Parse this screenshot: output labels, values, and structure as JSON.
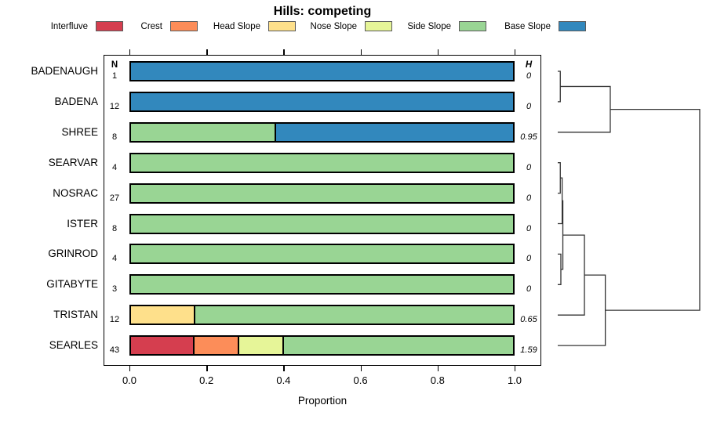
{
  "chart_data": {
    "type": "bar",
    "orientation": "horizontal",
    "stacked": true,
    "title": "Hills: competing",
    "xlabel": "Proportion",
    "xlim": [
      0,
      1
    ],
    "xticks": [
      "0.0",
      "0.2",
      "0.4",
      "0.6",
      "0.8",
      "1.0"
    ],
    "n_column_header": "N",
    "h_column_header": "H",
    "legend": [
      {
        "label": "Interfluve",
        "color": "#D53E4F"
      },
      {
        "label": "Crest",
        "color": "#FC8D59"
      },
      {
        "label": "Head Slope",
        "color": "#FEE08B"
      },
      {
        "label": "Nose Slope",
        "color": "#E6F598"
      },
      {
        "label": "Side Slope",
        "color": "#99D594"
      },
      {
        "label": "Base Slope",
        "color": "#3288BD"
      }
    ],
    "rows": [
      {
        "label": "BADENAUGH",
        "n": "1",
        "h": "0",
        "segments": [
          {
            "class": "Base Slope",
            "value": 1.0
          }
        ]
      },
      {
        "label": "BADENA",
        "n": "12",
        "h": "0",
        "segments": [
          {
            "class": "Base Slope",
            "value": 1.0
          }
        ]
      },
      {
        "label": "SHREE",
        "n": "8",
        "h": "0.95",
        "segments": [
          {
            "class": "Side Slope",
            "value": 0.375
          },
          {
            "class": "Base Slope",
            "value": 0.625
          }
        ]
      },
      {
        "label": "SEARVAR",
        "n": "4",
        "h": "0",
        "segments": [
          {
            "class": "Side Slope",
            "value": 1.0
          }
        ]
      },
      {
        "label": "NOSRAC",
        "n": "27",
        "h": "0",
        "segments": [
          {
            "class": "Side Slope",
            "value": 1.0
          }
        ]
      },
      {
        "label": "ISTER",
        "n": "8",
        "h": "0",
        "segments": [
          {
            "class": "Side Slope",
            "value": 1.0
          }
        ]
      },
      {
        "label": "GRINROD",
        "n": "4",
        "h": "0",
        "segments": [
          {
            "class": "Side Slope",
            "value": 1.0
          }
        ]
      },
      {
        "label": "GITABYTE",
        "n": "3",
        "h": "0",
        "segments": [
          {
            "class": "Side Slope",
            "value": 1.0
          }
        ]
      },
      {
        "label": "TRISTAN",
        "n": "12",
        "h": "0.65",
        "segments": [
          {
            "class": "Head Slope",
            "value": 0.165
          },
          {
            "class": "Side Slope",
            "value": 0.835
          }
        ]
      },
      {
        "label": "SEARLES",
        "n": "43",
        "h": "1.59",
        "segments": [
          {
            "class": "Interfluve",
            "value": 0.163
          },
          {
            "class": "Crest",
            "value": 0.117
          },
          {
            "class": "Nose Slope",
            "value": 0.116
          },
          {
            "class": "Side Slope",
            "value": 0.604
          }
        ]
      }
    ],
    "dendrogram": {
      "h": 1.0,
      "children": [
        {
          "h": 0.37,
          "children": [
            {
              "h": 0.018,
              "children": [
                {
                  "leaf": "BADENAUGH"
                },
                {
                  "leaf": "BADENA"
                }
              ]
            },
            {
              "leaf": "SHREE"
            }
          ]
        },
        {
          "h": 0.335,
          "children": [
            {
              "h": 0.188,
              "children": [
                {
                  "h": 0.036,
                  "children": [
                    {
                      "h": 0.031,
                      "children": [
                        {
                          "h": 0.018,
                          "children": [
                            {
                              "leaf": "SEARVAR"
                            },
                            {
                              "leaf": "NOSRAC"
                            }
                          ]
                        },
                        {
                          "leaf": "ISTER"
                        }
                      ]
                    },
                    {
                      "h": 0.022,
                      "children": [
                        {
                          "leaf": "GRINROD"
                        },
                        {
                          "leaf": "GITABYTE"
                        }
                      ]
                    }
                  ]
                },
                {
                  "leaf": "TRISTAN"
                }
              ]
            },
            {
              "leaf": "SEARLES"
            }
          ]
        }
      ]
    }
  }
}
